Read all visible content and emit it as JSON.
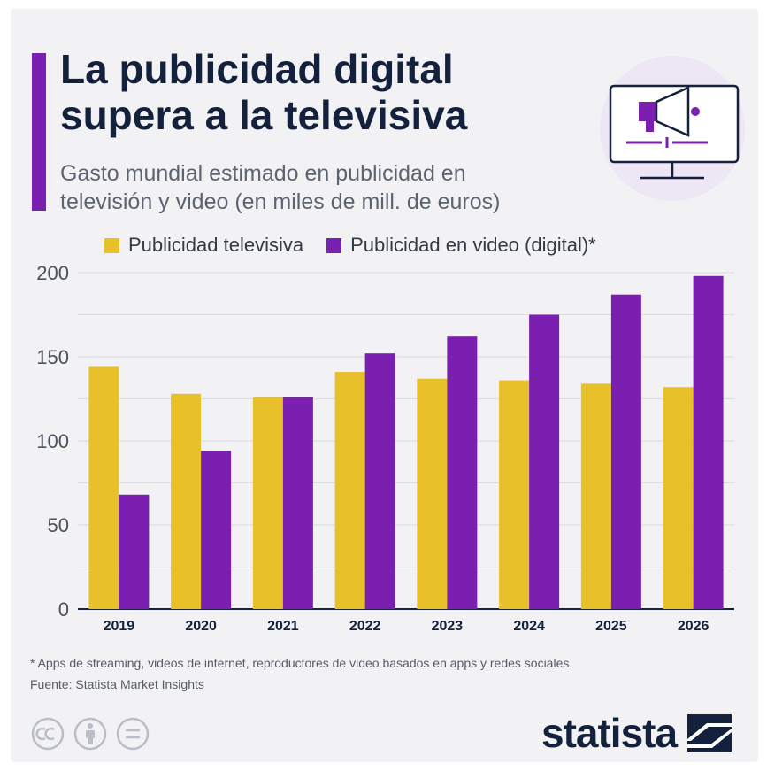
{
  "header": {
    "title_line1": "La publicidad digital",
    "title_line2": "supera a la televisiva",
    "subtitle_line1": "Gasto mundial estimado en publicidad en",
    "subtitle_line2": "televisión y video (en miles de mill. de euros)"
  },
  "icon": "monitor-megaphone-icon",
  "colors": {
    "accent": "#7b1fb0",
    "tv": "#e8c02a",
    "video": "#7b1fb0",
    "title": "#14213d"
  },
  "chart_data": {
    "type": "bar",
    "categories": [
      "2019",
      "2020",
      "2021",
      "2022",
      "2023",
      "2024",
      "2025",
      "2026"
    ],
    "series": [
      {
        "name": "Publicidad televisiva",
        "values": [
          144,
          128,
          126,
          141,
          137,
          136,
          134,
          132
        ]
      },
      {
        "name": "Publicidad en video (digital)*",
        "values": [
          68,
          94,
          126,
          152,
          162,
          175,
          187,
          198
        ]
      }
    ],
    "ylim": [
      0,
      200
    ],
    "yticks": [
      0,
      50,
      100,
      150,
      200
    ],
    "grid": true,
    "legend": "top"
  },
  "footer": {
    "note": "* Apps de streaming, videos de internet, reproductores de video basados en apps y redes sociales.",
    "source": "Fuente: Statista Market Insights",
    "brand": "statista",
    "license_icons": [
      "cc-icon",
      "person-icon",
      "equals-icon"
    ]
  }
}
